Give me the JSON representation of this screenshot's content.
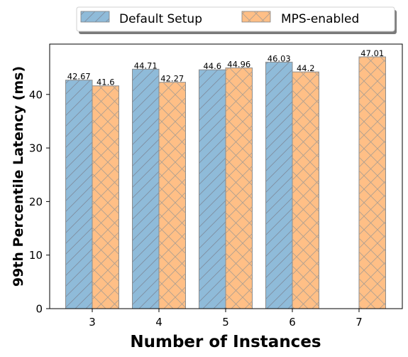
{
  "chart_data": {
    "type": "bar",
    "categories": [
      "3",
      "4",
      "5",
      "6",
      "7"
    ],
    "series": [
      {
        "name": "Default Setup",
        "values": [
          42.67,
          44.71,
          44.6,
          46.03,
          null
        ],
        "labels": [
          "42.67",
          "44.71",
          "44.6",
          "46.03",
          ""
        ],
        "color": "#1f77b4",
        "pattern": "diagonal"
      },
      {
        "name": "MPS-enabled",
        "values": [
          41.6,
          42.27,
          44.96,
          44.2,
          47.01
        ],
        "labels": [
          "41.6",
          "42.27",
          "44.96",
          "44.2",
          "47.01"
        ],
        "color": "#ff7f0e",
        "pattern": "cross"
      }
    ],
    "title": "",
    "xlabel": "Number of Instances",
    "ylabel": "99th Percentile Latency (ms)",
    "ylim": [
      0,
      49.4
    ],
    "yticks": [
      "0",
      "10",
      "20",
      "30",
      "40"
    ],
    "grid": false,
    "legend_position": "top-center"
  }
}
